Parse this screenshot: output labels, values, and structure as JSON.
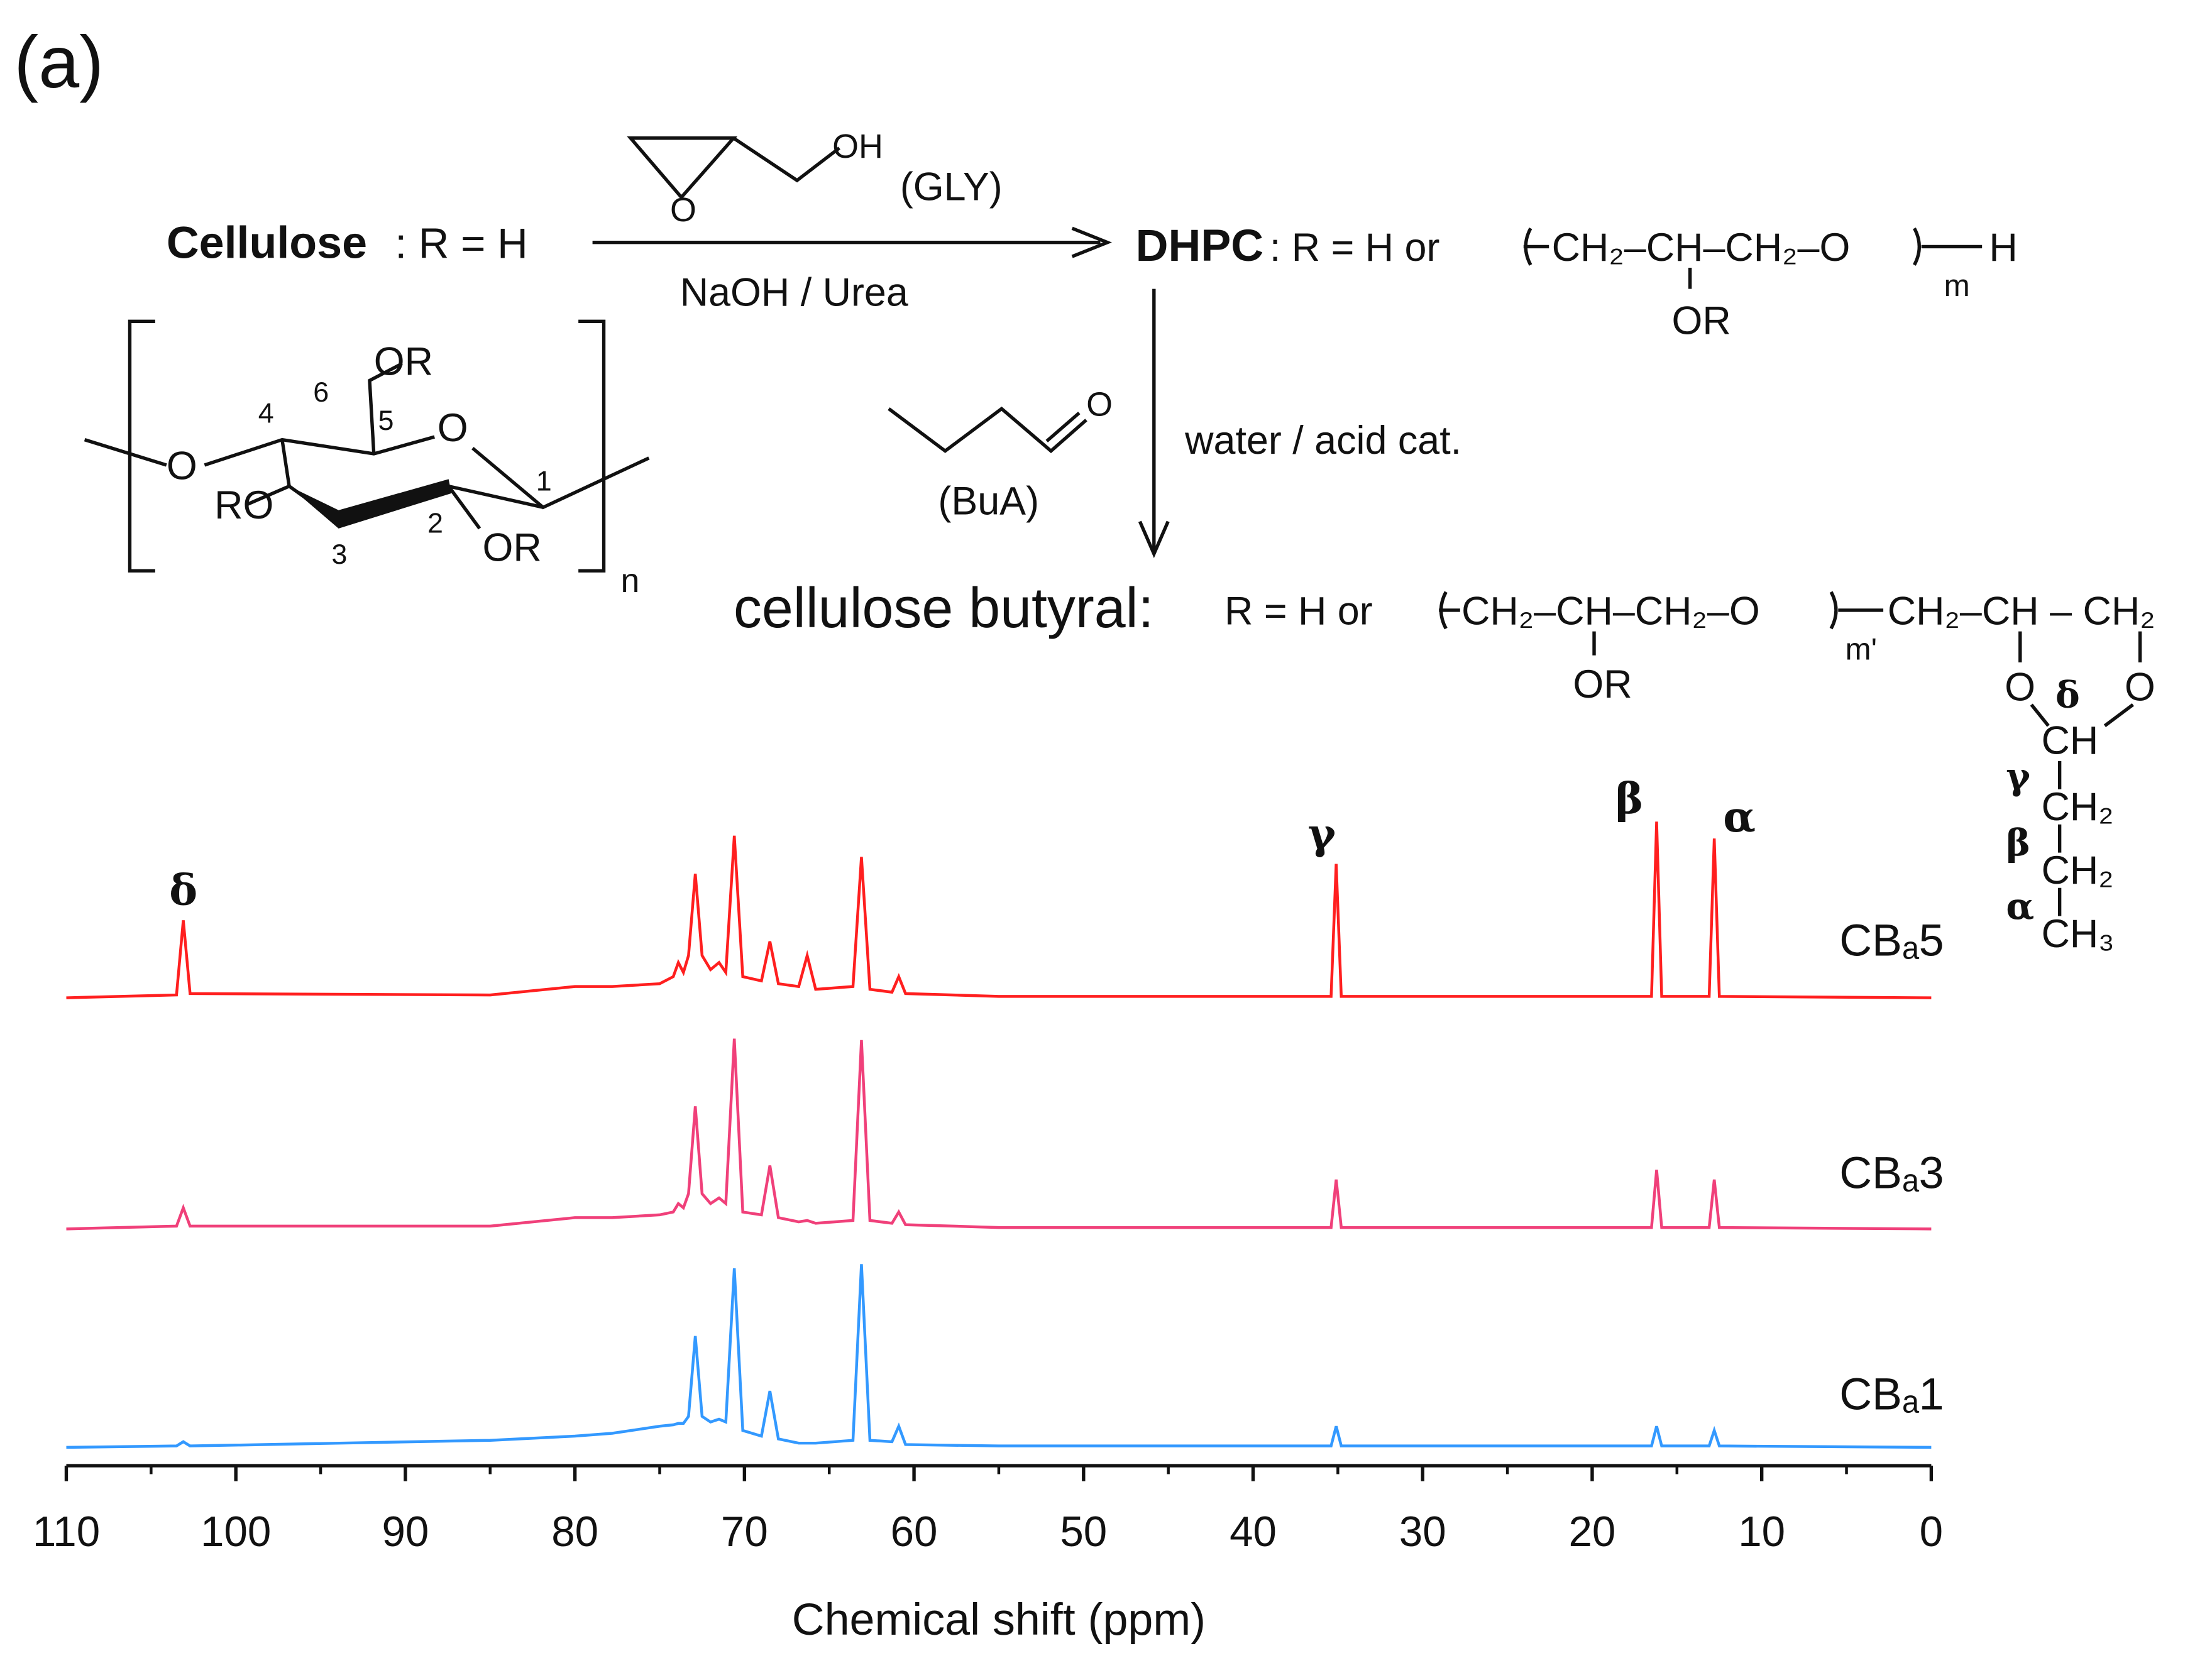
{
  "scheme": {
    "labels": [
      "(a)",
      "Cellulose",
      ": R = H",
      "OH",
      "O",
      "(GLY)",
      "NaOH / Urea",
      "DHPC",
      ": R = H or",
      "CH₂–CH–CH₂–O",
      "m",
      "H",
      "OR",
      "O",
      "(BuA)",
      "water / acid cat.",
      "OR",
      "6",
      "5",
      "4",
      "O",
      "1",
      "O",
      "RO",
      "2",
      "OR",
      "3",
      "n",
      "cellulose butyral:",
      "R = H or",
      "CH₂–CH–CH₂–O",
      "m'",
      "CH₂–CH – CH₂",
      "OR",
      "O",
      "O",
      "δ",
      "CH",
      "γ",
      "CH₂",
      "β",
      "CH₂",
      "α",
      "CH₃"
    ]
  },
  "chart_data": {
    "type": "line",
    "xlabel": "Chemical shift (ppm)",
    "xlim": [
      110,
      0
    ],
    "xticks": [
      110,
      100,
      90,
      80,
      70,
      60,
      50,
      40,
      30,
      20,
      10,
      0
    ],
    "xminorticks": [
      105,
      95,
      85,
      75,
      65,
      55,
      45,
      35,
      25,
      15,
      5
    ],
    "x": [
      110,
      103.5,
      103.1,
      102.7,
      85,
      80.0,
      77.8,
      75,
      74.2,
      73.9,
      73.6,
      73.3,
      72.9,
      72.5,
      72.0,
      71.5,
      71.1,
      70.6,
      70.1,
      69,
      68.5,
      68.0,
      66.8,
      66.3,
      65.8,
      63.6,
      63.1,
      62.6,
      61.3,
      60.9,
      60.5,
      55,
      35.4,
      35.1,
      34.8,
      16.5,
      16.2,
      15.9,
      13.1,
      12.8,
      12.5,
      0
    ],
    "series": [
      {
        "name": "CBₐ5",
        "color": "#ff1f1f",
        "values": [
          0,
          2,
          55,
          3,
          2,
          8,
          8,
          10,
          15,
          25,
          18,
          30,
          88,
          30,
          20,
          25,
          18,
          115,
          15,
          12,
          40,
          10,
          8,
          30,
          6,
          8,
          100,
          6,
          4,
          15,
          3,
          1,
          1,
          95,
          1,
          1,
          125,
          1,
          1,
          113,
          1,
          0
        ]
      },
      {
        "name": "CBₐ3",
        "color": "#f0407a",
        "values": [
          0,
          2,
          15,
          2,
          2,
          8,
          8,
          10,
          12,
          18,
          15,
          25,
          87,
          25,
          18,
          22,
          18,
          135,
          12,
          10,
          45,
          8,
          5,
          6,
          4,
          6,
          134,
          6,
          4,
          12,
          3,
          1,
          1,
          35,
          1,
          1,
          42,
          1,
          1,
          35,
          1,
          0
        ]
      },
      {
        "name": "CBₐ1",
        "color": "#3399ff",
        "values": [
          0,
          1,
          4,
          1,
          5,
          8,
          10,
          15,
          16,
          17,
          17,
          22,
          79,
          22,
          18,
          20,
          18,
          127,
          12,
          8,
          40,
          6,
          3,
          3,
          3,
          5,
          130,
          5,
          4,
          15,
          2,
          1,
          1,
          15,
          1,
          1,
          15,
          1,
          1,
          12,
          1,
          0
        ]
      }
    ],
    "annotations": [
      "δ",
      "γ",
      "β",
      "α"
    ]
  }
}
